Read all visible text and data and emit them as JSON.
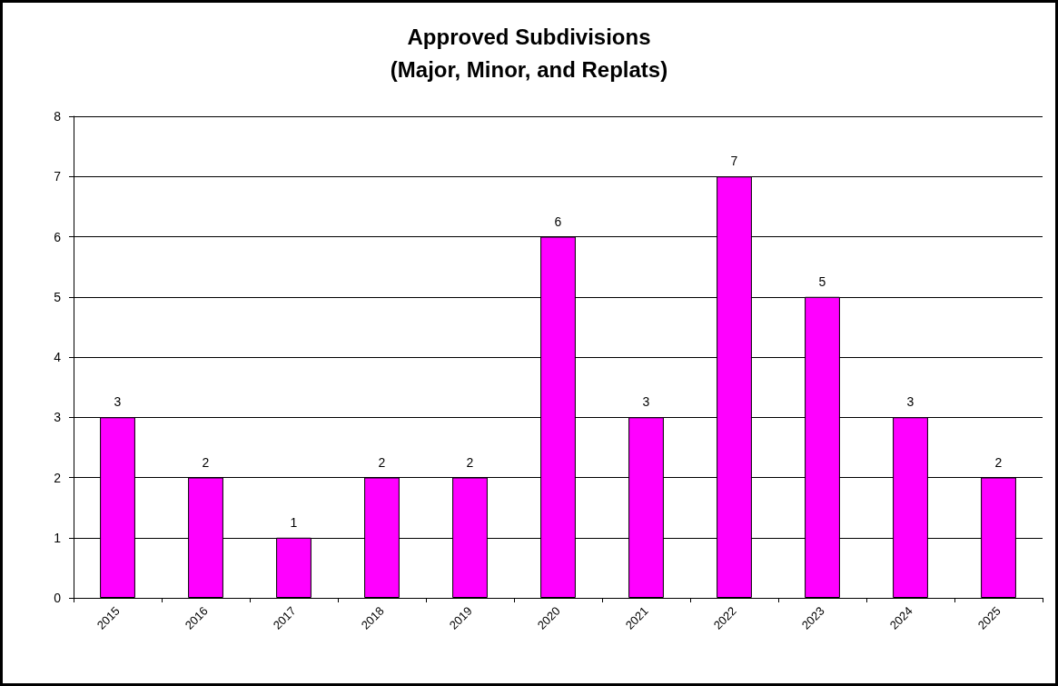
{
  "chart_data": {
    "type": "bar",
    "title": "Approved Subdivisions\n(Major, Minor, and Replats)",
    "categories": [
      "2015",
      "2016",
      "2017",
      "2018",
      "2019",
      "2020",
      "2021",
      "2022",
      "2023",
      "2024",
      "2025"
    ],
    "values": [
      3,
      2,
      1,
      2,
      2,
      6,
      3,
      7,
      5,
      3,
      2
    ],
    "color": "#ff00ff",
    "ylim": [
      0,
      8
    ],
    "yticks": [
      0,
      1,
      2,
      3,
      4,
      5,
      6,
      7,
      8
    ],
    "grid": "y",
    "data_labels": true
  }
}
